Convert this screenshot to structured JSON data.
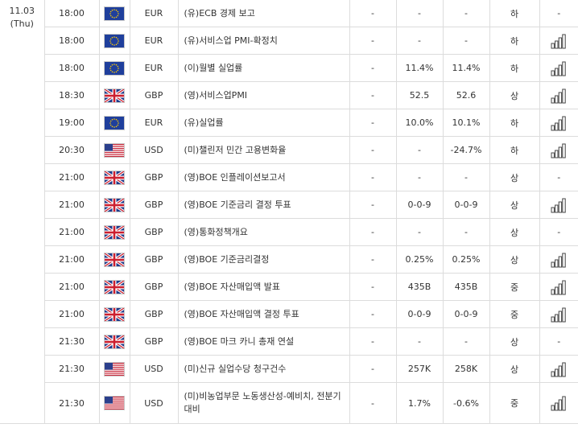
{
  "date": {
    "day": "11.03",
    "weekday": "(Thu)"
  },
  "rows": [
    {
      "time": "18:00",
      "flag": "eu",
      "currency": "EUR",
      "event": "(유)ECB 경제 보고",
      "actual": "-",
      "forecast": "-",
      "previous": "-",
      "importance": "하",
      "chart": false
    },
    {
      "time": "18:00",
      "flag": "eu",
      "currency": "EUR",
      "event": "(유)서비스업 PMI-확정치",
      "actual": "-",
      "forecast": "-",
      "previous": "-",
      "importance": "하",
      "chart": true
    },
    {
      "time": "18:00",
      "flag": "eu",
      "currency": "EUR",
      "event": "(이)월별 실업률",
      "actual": "-",
      "forecast": "11.4%",
      "previous": "11.4%",
      "importance": "하",
      "chart": true
    },
    {
      "time": "18:30",
      "flag": "uk",
      "currency": "GBP",
      "event": "(영)서비스업PMI",
      "actual": "-",
      "forecast": "52.5",
      "previous": "52.6",
      "importance": "상",
      "chart": true
    },
    {
      "time": "19:00",
      "flag": "eu",
      "currency": "EUR",
      "event": "(유)실업률",
      "actual": "-",
      "forecast": "10.0%",
      "previous": "10.1%",
      "importance": "하",
      "chart": true
    },
    {
      "time": "20:30",
      "flag": "us",
      "currency": "USD",
      "event": "(미)챌린저 민간 고용변화율",
      "actual": "-",
      "forecast": "-",
      "previous": "-24.7%",
      "importance": "하",
      "chart": true
    },
    {
      "time": "21:00",
      "flag": "uk",
      "currency": "GBP",
      "event": "(영)BOE 인플레이션보고서",
      "actual": "-",
      "forecast": "-",
      "previous": "-",
      "importance": "상",
      "chart": false
    },
    {
      "time": "21:00",
      "flag": "uk",
      "currency": "GBP",
      "event": "(영)BOE 기준금리 결정 투표",
      "actual": "-",
      "forecast": "0-0-9",
      "previous": "0-0-9",
      "importance": "상",
      "chart": true
    },
    {
      "time": "21:00",
      "flag": "uk",
      "currency": "GBP",
      "event": "(영)통화정책개요",
      "actual": "-",
      "forecast": "-",
      "previous": "-",
      "importance": "상",
      "chart": false
    },
    {
      "time": "21:00",
      "flag": "uk",
      "currency": "GBP",
      "event": "(영)BOE 기준금리결정",
      "actual": "-",
      "forecast": "0.25%",
      "previous": "0.25%",
      "importance": "상",
      "chart": true
    },
    {
      "time": "21:00",
      "flag": "uk",
      "currency": "GBP",
      "event": "(영)BOE 자산매입액 발표",
      "actual": "-",
      "forecast": "435B",
      "previous": "435B",
      "importance": "중",
      "chart": true
    },
    {
      "time": "21:00",
      "flag": "uk",
      "currency": "GBP",
      "event": "(영)BOE 자산매입액 결정 투표",
      "actual": "-",
      "forecast": "0-0-9",
      "previous": "0-0-9",
      "importance": "중",
      "chart": true
    },
    {
      "time": "21:30",
      "flag": "uk",
      "currency": "GBP",
      "event": "(영)BOE 마크 카니 총재 연설",
      "actual": "-",
      "forecast": "-",
      "previous": "-",
      "importance": "상",
      "chart": false
    },
    {
      "time": "21:30",
      "flag": "us",
      "currency": "USD",
      "event": "(미)신규 실업수당 청구건수",
      "actual": "-",
      "forecast": "257K",
      "previous": "258K",
      "importance": "상",
      "chart": true
    },
    {
      "time": "21:30",
      "flag": "us",
      "currency": "USD",
      "event": "(미)비농업부문 노동생산성-예비치, 전분기대비",
      "actual": "-",
      "forecast": "1.7%",
      "previous": "-0.6%",
      "importance": "중",
      "chart": true
    }
  ],
  "no_chart_text": "-",
  "icons": {
    "chart_button": "bar-chart-icon",
    "eu": "eu-flag-icon",
    "uk": "uk-flag-icon",
    "us": "us-flag-icon"
  },
  "colors": {
    "border": "#dcdcdc",
    "text": "#333333"
  }
}
